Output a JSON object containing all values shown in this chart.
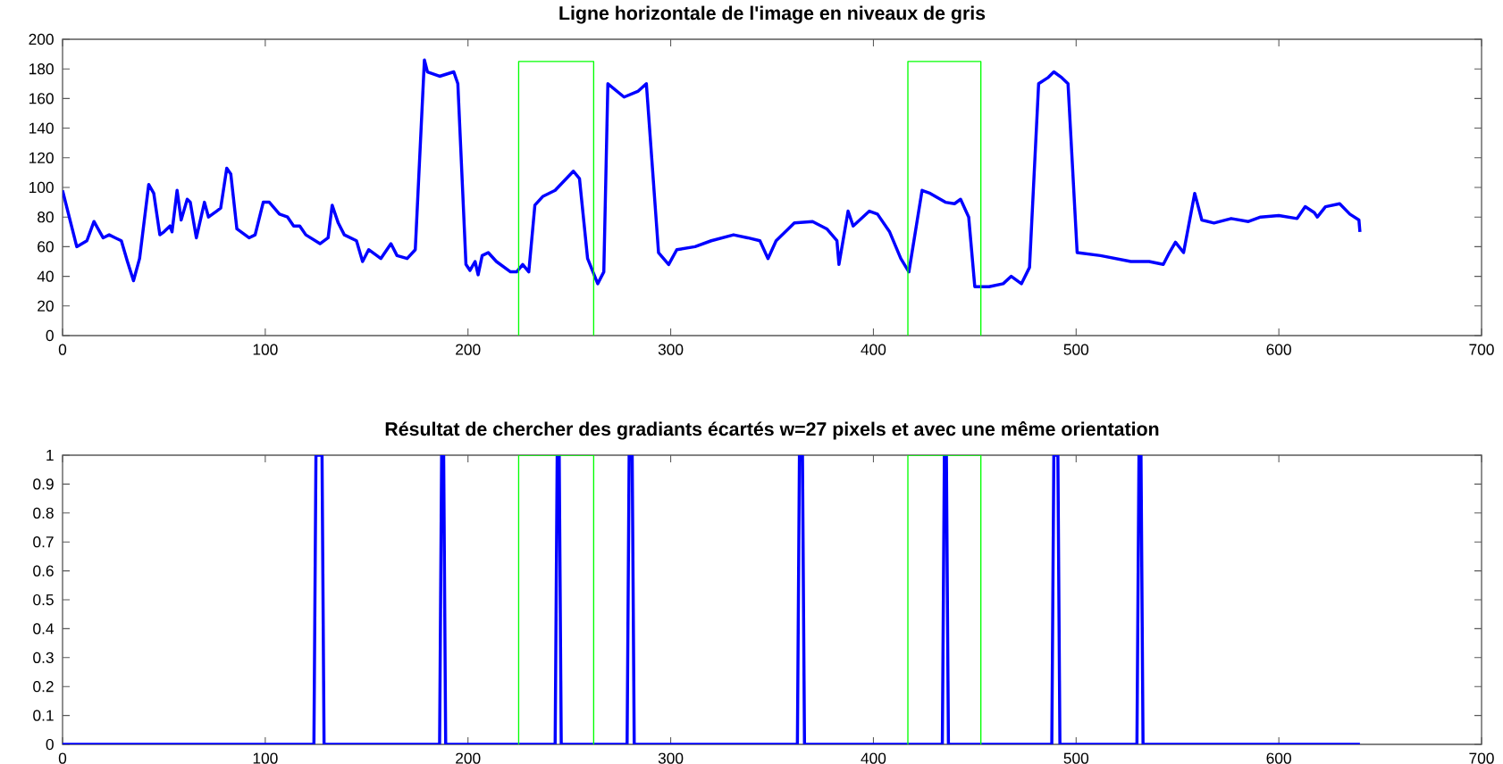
{
  "chart_data": [
    {
      "type": "line",
      "title": "Ligne horizontale de l'image en niveaux de gris",
      "xlim": [
        0,
        700
      ],
      "xticks": [
        0,
        100,
        200,
        300,
        400,
        500,
        600,
        700
      ],
      "ylim": [
        0,
        200
      ],
      "yticks": [
        0,
        20,
        40,
        60,
        80,
        100,
        120,
        140,
        160,
        180,
        200
      ],
      "grid": false,
      "series": [
        {
          "color": "#0000ff",
          "x": [
            0,
            7,
            12,
            15.5,
            20,
            23,
            26,
            29,
            32,
            35,
            38,
            42.5,
            45,
            48,
            50,
            53,
            54,
            56.5,
            58.5,
            61.5,
            63,
            66,
            70,
            72,
            76,
            78,
            81,
            83,
            86,
            92,
            95,
            99,
            102,
            107,
            111,
            114,
            117,
            120,
            127,
            131,
            133,
            136,
            139,
            145,
            148,
            151,
            157,
            162,
            165,
            170,
            174,
            178.5,
            180,
            186,
            193,
            195,
            199,
            201,
            203.5,
            205,
            207,
            210,
            214,
            221,
            224,
            227,
            230,
            233,
            237,
            243,
            252,
            255,
            259,
            264,
            267,
            269,
            277,
            284,
            288,
            294,
            299,
            303,
            312,
            320,
            331,
            338,
            344,
            348,
            352,
            361,
            370,
            377,
            382,
            383,
            387.5,
            390,
            398,
            402,
            408,
            413.5,
            417.5,
            424,
            428,
            435.5,
            440,
            443,
            447,
            450,
            457,
            464,
            468,
            473,
            477,
            481.5,
            486,
            489,
            493,
            496,
            500.5,
            512,
            527,
            536,
            543,
            546,
            549,
            553,
            558.5,
            562,
            568,
            576.5,
            585,
            591,
            600,
            609,
            613,
            617.5,
            619,
            623,
            630,
            635,
            639.5,
            640
          ],
          "values": [
            98,
            60,
            64,
            77,
            66,
            68,
            66,
            64,
            50,
            37,
            52,
            102,
            96,
            68,
            70,
            74,
            70,
            98,
            78,
            92,
            90,
            66,
            90,
            80,
            84,
            86,
            113,
            109,
            72,
            66,
            68,
            90,
            90,
            82,
            80,
            74,
            74,
            68,
            62,
            66,
            88,
            76,
            68,
            64,
            50,
            58,
            52,
            62,
            54,
            52,
            58,
            186,
            178,
            175,
            178,
            170,
            48,
            44,
            50,
            41,
            54,
            56,
            50,
            43,
            43,
            48,
            43,
            88,
            94,
            98,
            111,
            106,
            52,
            35,
            43,
            170,
            161,
            165,
            170,
            56,
            48,
            58,
            60,
            64,
            68,
            66,
            64,
            52,
            64,
            76,
            77,
            72,
            64,
            48,
            84,
            74,
            84,
            82,
            70,
            52,
            43,
            98,
            96,
            90,
            89,
            92,
            80,
            33,
            33,
            35,
            40,
            35,
            46,
            170,
            174,
            178,
            174,
            170,
            56,
            54,
            50,
            50,
            48,
            56,
            63,
            56,
            96,
            78,
            76,
            79,
            77,
            80,
            81,
            79,
            87,
            83,
            80,
            87,
            89,
            82,
            78,
            70
          ]
        },
        {
          "color": "#00ff00",
          "x": [
            225,
            225,
            262,
            262,
            340,
            417,
            417,
            453,
            453
          ],
          "values": [
            0,
            185,
            185,
            0,
            null,
            0,
            185,
            185,
            0
          ]
        }
      ]
    },
    {
      "type": "line",
      "title": "Résultat de chercher des gradiants écartés w=27 pixels et avec une même orientation",
      "xlim": [
        0,
        700
      ],
      "xticks": [
        0,
        100,
        200,
        300,
        400,
        500,
        600,
        700
      ],
      "ylim": [
        0,
        1
      ],
      "yticks": [
        0,
        0.1,
        0.2,
        0.3,
        0.4,
        0.5,
        0.6,
        0.7,
        0.8,
        0.9,
        1
      ],
      "grid": false,
      "series": [
        {
          "color": "#0000ff",
          "x": [
            0,
            124,
            125,
            128,
            129,
            186,
            187,
            188,
            189,
            243,
            244,
            245,
            246,
            278.5,
            279.5,
            281,
            282,
            362.5,
            363.5,
            365,
            366,
            434,
            435,
            436,
            437,
            488,
            489,
            491,
            492,
            530,
            531,
            532,
            533,
            640
          ],
          "values": [
            0,
            0,
            1,
            1,
            0,
            0,
            1,
            1,
            0,
            0,
            1,
            1,
            0,
            0,
            1,
            1,
            0,
            0,
            1,
            1,
            0,
            0,
            1,
            1,
            0,
            0,
            1,
            1,
            0,
            0,
            1,
            1,
            0,
            0
          ]
        },
        {
          "color": "#00ff00",
          "x": [
            225,
            225,
            262,
            262,
            340,
            417,
            417,
            453,
            453
          ],
          "values": [
            0,
            1,
            1,
            0,
            null,
            0,
            1,
            1,
            0
          ]
        }
      ]
    }
  ]
}
